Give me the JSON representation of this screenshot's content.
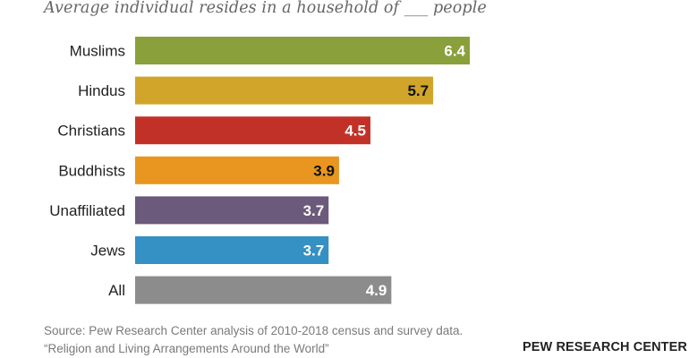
{
  "chart_data": {
    "type": "bar",
    "orientation": "horizontal",
    "title": "",
    "subtitle": "Average individual resides in a household of ___ people",
    "xlabel": "",
    "ylabel": "",
    "xlim": [
      0,
      6.4
    ],
    "grid": false,
    "legend": "none",
    "categories": [
      "Muslims",
      "Hindus",
      "Christians",
      "Buddhists",
      "Unaffiliated",
      "Jews",
      "All"
    ],
    "values": [
      6.4,
      5.7,
      4.5,
      3.9,
      3.7,
      3.7,
      4.9
    ],
    "value_labels": [
      "6.4",
      "5.7",
      "4.5",
      "3.9",
      "3.7",
      "3.7",
      "4.9"
    ],
    "colors": [
      "#8aa03a",
      "#d1a52a",
      "#c23127",
      "#e8961f",
      "#6b5a7b",
      "#3590c4",
      "#8c8c8c"
    ],
    "label_colors": [
      "#ffffff",
      "#111111",
      "#ffffff",
      "#111111",
      "#ffffff",
      "#ffffff",
      "#ffffff"
    ]
  },
  "footer": {
    "source_line1": "Source: Pew Research Center analysis of 2010-2018 census and survey data.",
    "source_line2": "“Religion and Living Arrangements Around the World”",
    "brand": "PEW RESEARCH CENTER"
  }
}
